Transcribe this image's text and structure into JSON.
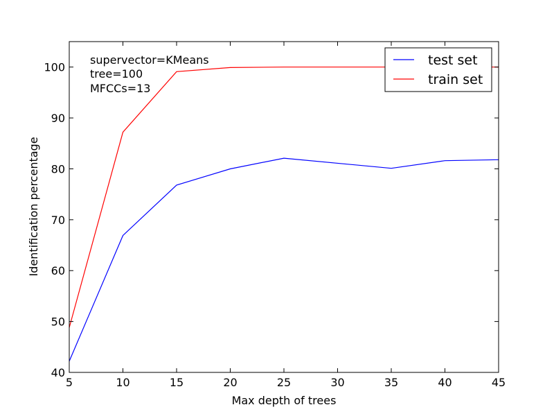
{
  "chart_data": {
    "type": "line",
    "xlabel": "Max depth of trees",
    "ylabel": "Identification percentage",
    "xlim": [
      5,
      45
    ],
    "ylim": [
      40,
      105
    ],
    "xticks": [
      5,
      10,
      15,
      20,
      25,
      30,
      35,
      40,
      45
    ],
    "yticks": [
      40,
      50,
      60,
      70,
      80,
      90,
      100
    ],
    "grid": false,
    "legend_position": "top-right",
    "annotation": [
      "supervector=KMeans",
      "tree=100",
      "MFCCs=13"
    ],
    "series": [
      {
        "name": "test set",
        "color": "#0000ff",
        "x": [
          5,
          10,
          15,
          20,
          25,
          35,
          40,
          45
        ],
        "y": [
          42.2,
          66.9,
          76.8,
          80.0,
          82.1,
          80.1,
          81.6,
          81.8
        ]
      },
      {
        "name": "train set",
        "color": "#ff0000",
        "x": [
          5,
          10,
          15,
          20,
          25,
          35,
          40,
          45
        ],
        "y": [
          48.8,
          87.2,
          99.1,
          99.9,
          100.0,
          100.0,
          100.0,
          100.0
        ]
      }
    ]
  }
}
